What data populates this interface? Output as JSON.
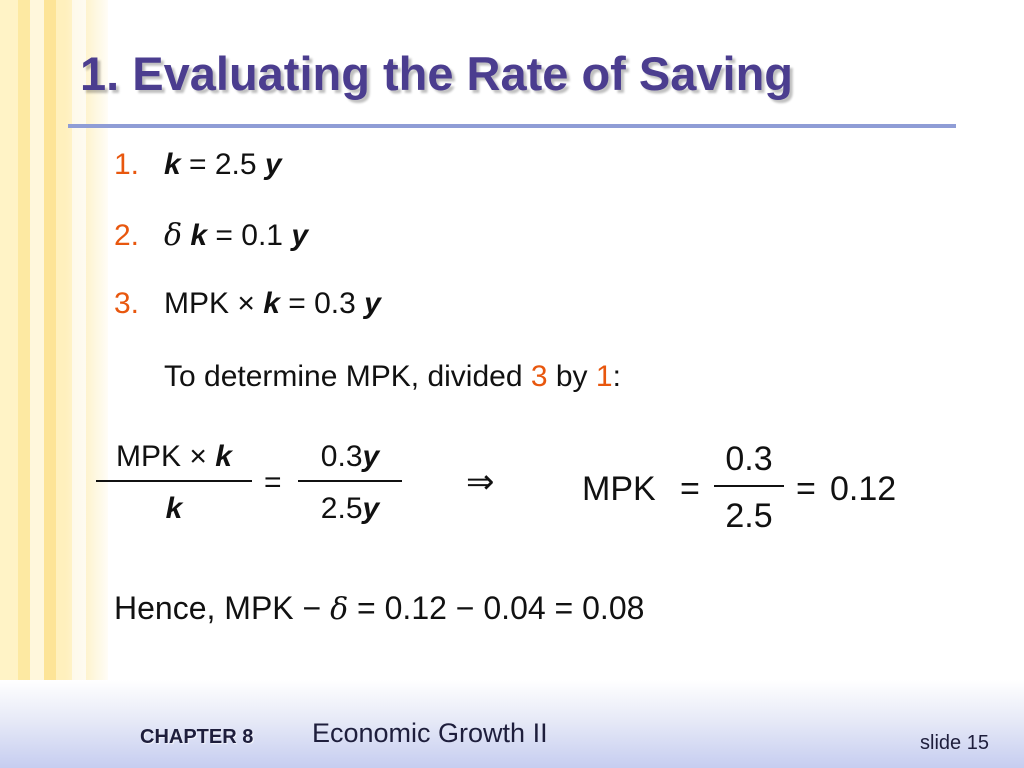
{
  "title": "1.  Evaluating the Rate of Saving",
  "items": [
    {
      "num": "1.",
      "a": "k",
      "b": " = 2.5 ",
      "c": "y"
    },
    {
      "num": "2.",
      "delta": "δ",
      "a": "k",
      "b": " = 0.1 ",
      "c": "y"
    },
    {
      "num": "3.",
      "pre": "MPK × ",
      "a": "k",
      "b": "  = 0.3 ",
      "c": "y"
    }
  ],
  "note": {
    "pre": "To determine  MPK, divided ",
    "n1": "3",
    "mid": " by ",
    "n2": "1",
    "post": ":"
  },
  "equation": {
    "left_num_text": "MPK × ",
    "left_num_var": "k",
    "left_den_var": "k",
    "equals1": "=",
    "right_num_val": "0.3",
    "right_num_var": "y",
    "right_den_val": "2.5",
    "right_den_var": "y",
    "implies": "⇒",
    "mpk": "MPK",
    "equals2": "=",
    "frac2_num": "0.3",
    "frac2_den": "2.5",
    "equals3": "=",
    "result": "0.12"
  },
  "hence": {
    "pre": "Hence, MPK − ",
    "delta": "δ",
    "post": "  = 0.12  − 0.04 = 0.08"
  },
  "footer": {
    "chapter": "CHAPTER 8",
    "title": "Economic Growth II",
    "slide": "slide 15"
  }
}
